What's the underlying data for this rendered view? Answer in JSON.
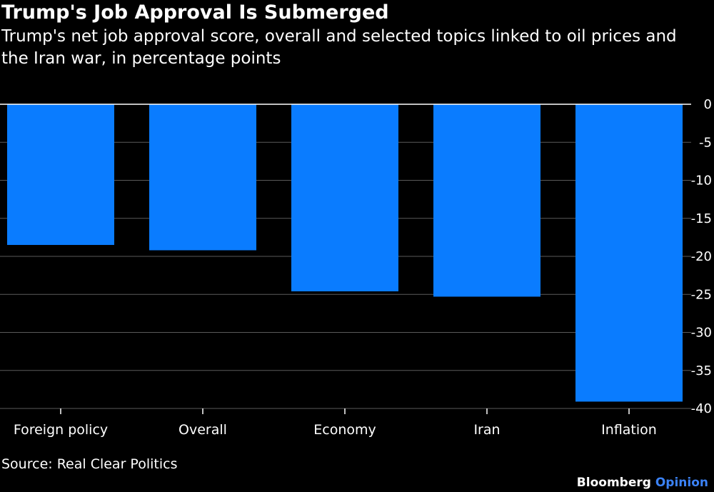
{
  "chart_data": {
    "type": "bar",
    "title": "Trump's Job Approval Is Submerged",
    "subtitle": "Trump's net job approval score, overall and selected topics linked to oil prices and the Iran war, in percentage points",
    "categories": [
      "Foreign policy",
      "Overall",
      "Economy",
      "Iran",
      "Inflation"
    ],
    "values": [
      -18.5,
      -19.2,
      -24.6,
      -25.3,
      -39.1
    ],
    "ylim": [
      -40,
      0
    ],
    "yticks": [
      0,
      -5,
      -10,
      -15,
      -20,
      -25,
      -30,
      -35,
      -40
    ],
    "ytick_labels": [
      "0",
      "-5",
      "-10",
      "-15",
      "-20",
      "-25",
      "-30",
      "-35",
      "-40"
    ],
    "xlabel": "",
    "ylabel": "",
    "grid": true,
    "legend": "none",
    "bar_color": "#0a7cff",
    "source": "Source: Real Clear Politics"
  },
  "branding": {
    "name": "Bloomberg",
    "suffix": "Opinion",
    "suffix_color": "#3b82f6"
  }
}
